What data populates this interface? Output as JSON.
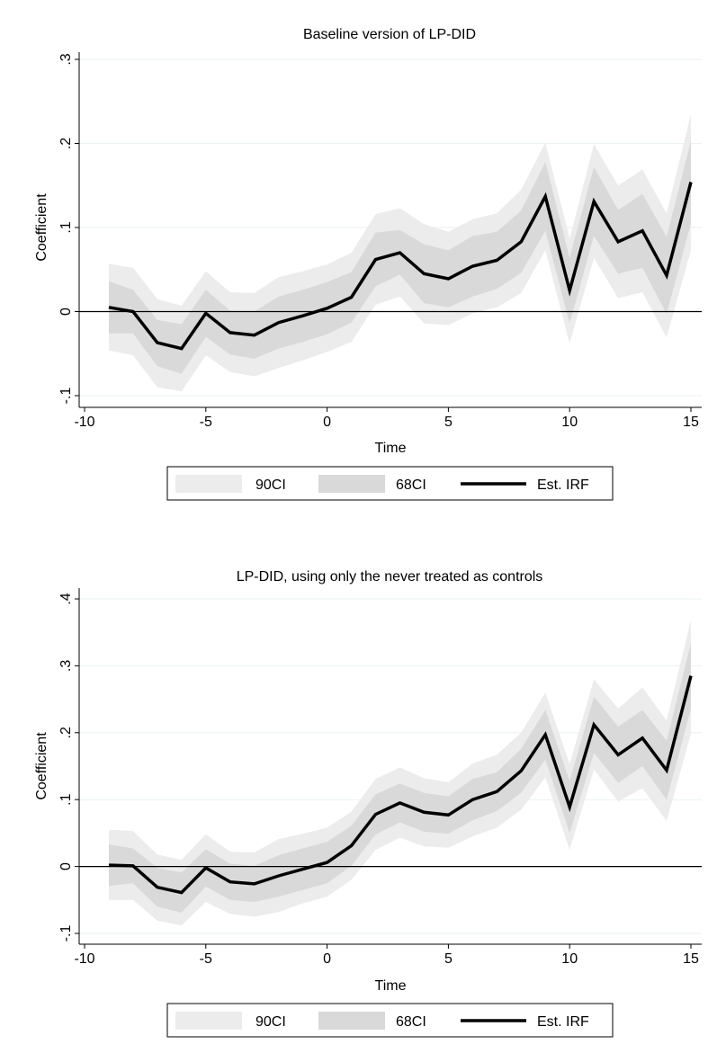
{
  "chart_data": [
    {
      "type": "line",
      "title": "Baseline version of LP-DID",
      "xlabel": "Time",
      "ylabel": "Coefficient",
      "xlim": [
        -10,
        15.5
      ],
      "ylim": [
        -0.1,
        0.3
      ],
      "xticks": [
        -10,
        -5,
        0,
        5,
        10,
        15
      ],
      "xtick_labels": [
        "-10",
        "-5",
        "0",
        "5",
        "10",
        "15"
      ],
      "yticks": [
        -0.1,
        0,
        0.1,
        0.2,
        0.3
      ],
      "ytick_labels": [
        "-.1",
        "0",
        ".1",
        ".2",
        ".3"
      ],
      "grid": true,
      "legend_position": "bottom",
      "x": [
        -9,
        -8,
        -7,
        -6,
        -5,
        -4,
        -3,
        -2,
        -1,
        0,
        1,
        2,
        3,
        4,
        5,
        6,
        7,
        8,
        9,
        10,
        11,
        12,
        13,
        14,
        15
      ],
      "series": [
        {
          "name": "Est. IRF",
          "values": [
            0.005,
            0.0,
            -0.037,
            -0.044,
            -0.002,
            -0.025,
            -0.028,
            -0.013,
            -0.005,
            0.004,
            0.017,
            0.062,
            0.07,
            0.045,
            0.039,
            0.054,
            0.061,
            0.083,
            0.137,
            0.025,
            0.131,
            0.083,
            0.096,
            0.043,
            0.154
          ]
        },
        {
          "name": "68CI",
          "lower": [
            -0.026,
            -0.026,
            -0.065,
            -0.074,
            -0.03,
            -0.051,
            -0.056,
            -0.044,
            -0.036,
            -0.027,
            -0.013,
            0.03,
            0.044,
            0.01,
            0.005,
            0.018,
            0.027,
            0.046,
            0.096,
            -0.014,
            0.09,
            0.045,
            0.052,
            -0.003,
            0.105
          ],
          "upper": [
            0.036,
            0.026,
            -0.01,
            -0.015,
            0.026,
            0.001,
            0.0,
            0.018,
            0.026,
            0.035,
            0.047,
            0.094,
            0.097,
            0.08,
            0.073,
            0.09,
            0.095,
            0.12,
            0.178,
            0.064,
            0.172,
            0.121,
            0.14,
            0.089,
            0.203
          ]
        },
        {
          "name": "90CI",
          "lower": [
            -0.046,
            -0.052,
            -0.09,
            -0.095,
            -0.052,
            -0.072,
            -0.077,
            -0.067,
            -0.058,
            -0.048,
            -0.036,
            0.008,
            0.018,
            -0.014,
            -0.016,
            -0.002,
            0.005,
            0.022,
            0.073,
            -0.038,
            0.064,
            0.016,
            0.023,
            -0.031,
            0.073
          ],
          "upper": [
            0.057,
            0.052,
            0.015,
            0.007,
            0.048,
            0.023,
            0.022,
            0.041,
            0.048,
            0.056,
            0.07,
            0.116,
            0.123,
            0.104,
            0.095,
            0.11,
            0.117,
            0.145,
            0.201,
            0.087,
            0.199,
            0.15,
            0.169,
            0.117,
            0.235
          ]
        }
      ],
      "legend": [
        "90CI",
        "68CI",
        "Est. IRF"
      ]
    },
    {
      "type": "line",
      "title": "LP-DID, using only the never treated as controls",
      "xlabel": "Time",
      "ylabel": "Coefficient",
      "xlim": [
        -10,
        15.5
      ],
      "ylim": [
        -0.1,
        0.4
      ],
      "xticks": [
        -10,
        -5,
        0,
        5,
        10,
        15
      ],
      "xtick_labels": [
        "-10",
        "-5",
        "0",
        "5",
        "10",
        "15"
      ],
      "yticks": [
        -0.1,
        0,
        0.1,
        0.2,
        0.3,
        0.4
      ],
      "ytick_labels": [
        "-.1",
        "0",
        ".1",
        ".2",
        ".3",
        ".4"
      ],
      "grid": true,
      "legend_position": "bottom",
      "x": [
        -9,
        -8,
        -7,
        -6,
        -5,
        -4,
        -3,
        -2,
        -1,
        0,
        1,
        2,
        3,
        4,
        5,
        6,
        7,
        8,
        9,
        10,
        11,
        12,
        13,
        14,
        15
      ],
      "series": [
        {
          "name": "Est. IRF",
          "values": [
            0.002,
            0.001,
            -0.031,
            -0.039,
            -0.002,
            -0.023,
            -0.026,
            -0.014,
            -0.004,
            0.006,
            0.031,
            0.078,
            0.095,
            0.081,
            0.077,
            0.1,
            0.112,
            0.143,
            0.197,
            0.089,
            0.212,
            0.167,
            0.192,
            0.144,
            0.285
          ]
        },
        {
          "name": "68CI",
          "lower": [
            -0.029,
            -0.025,
            -0.06,
            -0.069,
            -0.03,
            -0.05,
            -0.053,
            -0.045,
            -0.035,
            -0.025,
            0.001,
            0.048,
            0.066,
            0.052,
            0.049,
            0.069,
            0.083,
            0.11,
            0.16,
            0.05,
            0.17,
            0.125,
            0.15,
            0.1,
            0.236
          ]
        },
        {
          "name": "90CI",
          "lower": [
            -0.05,
            -0.05,
            -0.081,
            -0.088,
            -0.053,
            -0.071,
            -0.075,
            -0.068,
            -0.055,
            -0.045,
            -0.02,
            0.025,
            0.043,
            0.03,
            0.028,
            0.045,
            0.058,
            0.085,
            0.133,
            0.025,
            0.145,
            0.097,
            0.117,
            0.068,
            0.198
          ],
          "upper": [
            0.055,
            0.053,
            0.018,
            0.01,
            0.048,
            0.022,
            0.021,
            0.041,
            0.049,
            0.058,
            0.082,
            0.131,
            0.148,
            0.132,
            0.126,
            0.154,
            0.167,
            0.2,
            0.26,
            0.153,
            0.28,
            0.236,
            0.268,
            0.218,
            0.368
          ]
        }
      ],
      "legend": [
        "90CI",
        "68CI",
        "Est. IRF"
      ]
    }
  ]
}
